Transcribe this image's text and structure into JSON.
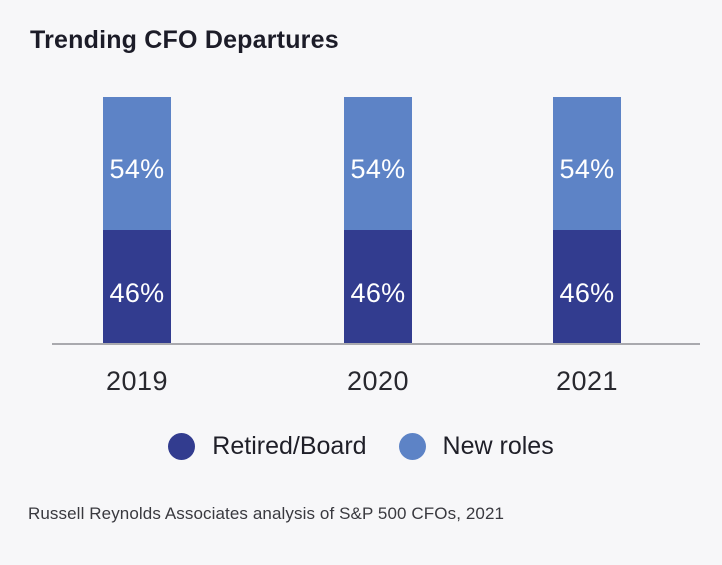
{
  "header": {
    "title": "Trending CFO Departures"
  },
  "chart_data": {
    "type": "bar",
    "subtype": "stacked-percent-column",
    "title": "Trending CFO Departures",
    "categories": [
      "2019",
      "2020",
      "2021"
    ],
    "series": [
      {
        "name": "Retired/Board",
        "color": "#323c8f",
        "values": [
          46,
          46,
          46
        ]
      },
      {
        "name": "New roles",
        "color": "#5d83c6",
        "values": [
          54,
          54,
          54
        ]
      }
    ],
    "ylim": [
      0,
      100
    ],
    "grid": false,
    "value_labels_shown": true,
    "value_label_format": "percent",
    "legend_position": "bottom",
    "xlabel": "",
    "ylabel": ""
  },
  "display": {
    "bars": [
      {
        "year": "2019",
        "top_label": "54%",
        "bottom_label": "46%"
      },
      {
        "year": "2020",
        "top_label": "54%",
        "bottom_label": "46%"
      },
      {
        "year": "2021",
        "top_label": "54%",
        "bottom_label": "46%"
      }
    ]
  },
  "legend": {
    "items": [
      {
        "label": "Retired/Board",
        "color": "#323c8f"
      },
      {
        "label": "New roles",
        "color": "#5d83c6"
      }
    ]
  },
  "footer": {
    "source": "Russell Reynolds Associates analysis of S&P 500 CFOs, 2021"
  },
  "colors": {
    "background": "#f7f7f9",
    "axis_line": "#a9a9ae",
    "title_text": "#1c1c28",
    "value_label_text": "#ffffff"
  }
}
